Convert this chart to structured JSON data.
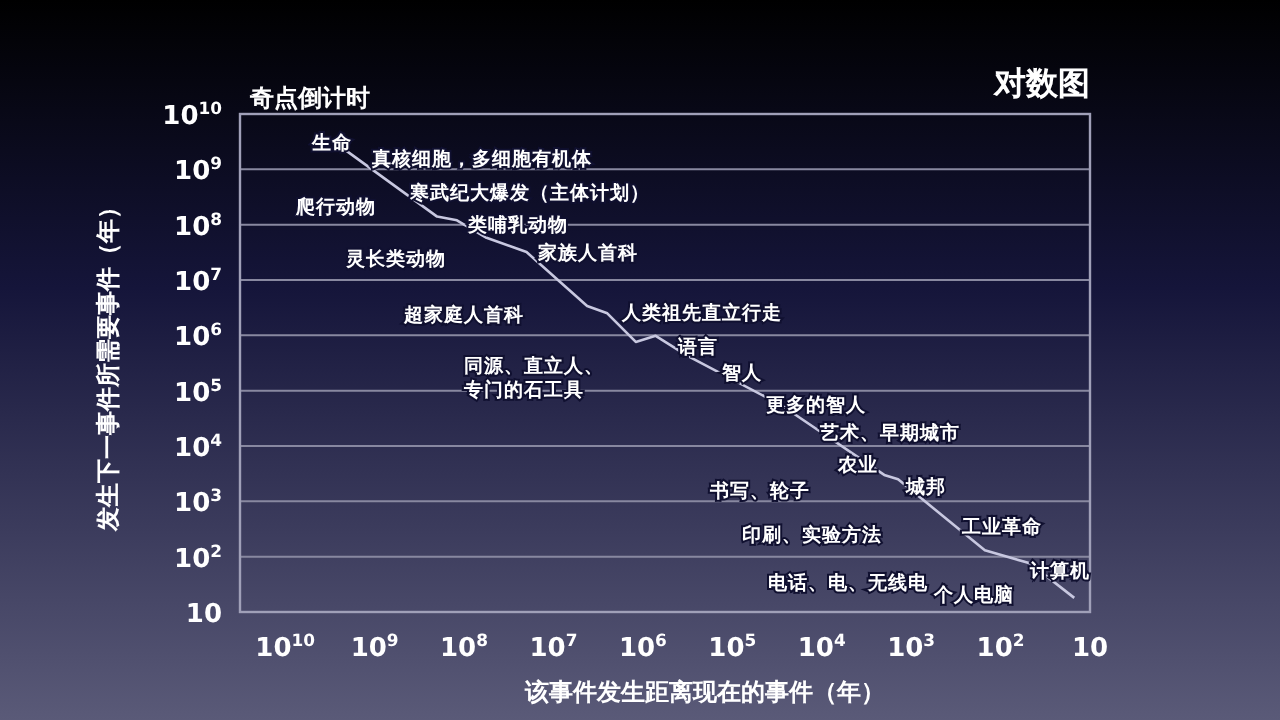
{
  "chart_data": {
    "type": "line",
    "title": "奇点倒计时",
    "subtitle": "对数图",
    "xlabel": "该事件发生距离现在的事件（年）",
    "ylabel": "发生下一事件所需要事件（年）",
    "log": "xy",
    "grid": "y",
    "marker": "none",
    "line_style": "solid",
    "xlim": [
      32000000000.0,
      10
    ],
    "ylim": [
      10,
      10000000000.0
    ],
    "xticks": [
      {
        "value": 10000000000.0,
        "label": "10$^{10}$"
      },
      {
        "value": 1000000000.0,
        "label": "10$^{9}$"
      },
      {
        "value": 100000000.0,
        "label": "10$^{8}$"
      },
      {
        "value": 10000000.0,
        "label": "10$^{7}$"
      },
      {
        "value": 1000000.0,
        "label": "10$^{6}$"
      },
      {
        "value": 100000.0,
        "label": "10$^{5}$"
      },
      {
        "value": 10000.0,
        "label": "10$^{4}$"
      },
      {
        "value": 1000.0,
        "label": "10$^{3}$"
      },
      {
        "value": 100,
        "label": "10$^{2}$"
      },
      10
    ],
    "yticks": [
      10,
      {
        "value": 100,
        "label": "10$^{2}$"
      },
      {
        "value": 1000.0,
        "label": "10$^{3}$"
      },
      {
        "value": 10000.0,
        "label": "10$^{4}$"
      },
      {
        "value": 100000.0,
        "label": "10$^{5}$"
      },
      {
        "value": 1000000.0,
        "label": "10$^{6}$"
      },
      {
        "value": 10000000.0,
        "label": "10$^{7}$"
      },
      {
        "value": 100000000.0,
        "label": "10$^{8}$"
      },
      {
        "value": 1000000000.0,
        "label": "10$^{9}$"
      },
      {
        "value": 10000000000.0,
        "label": "10$^{10}$"
      }
    ],
    "series": [
      {
        "color": "#c8c8e0",
        "x": [
          2100000000.0,
          200000000.0,
          120000000.0,
          56000000.0,
          20000000.0,
          4200000.0,
          2500000.0,
          1200000.0,
          720000.0,
          320000.0,
          28000.0,
          2000,
          1400,
          150,
          47,
          15
        ],
        "values": [
          2200000000.0,
          140000000.0,
          120000000.0,
          58000000.0,
          32000000.0,
          3400000.0,
          2500000.0,
          760000.0,
          980000.0,
          430000.0,
          54000.0,
          3000,
          2500,
          130,
          76,
          18
        ]
      }
    ],
    "annotations": [
      "生命",
      "真核细胞，多细胞有机体",
      "寒武纪大爆发（主体计划）",
      "爬行动物",
      "类哺乳动物",
      "灵长类动物",
      "家族人首科",
      "超家庭人首科",
      "人类祖先直立行走",
      "语言",
      "同源、直立人、专门的石工具",
      "智人",
      "更多的智人",
      "艺术、早期城市",
      "农业",
      "城邦",
      "书写、轮子",
      "印刷、实验方法",
      "工业革命",
      "电话、电、无线电",
      "计算机",
      "个人电脑"
    ]
  }
}
